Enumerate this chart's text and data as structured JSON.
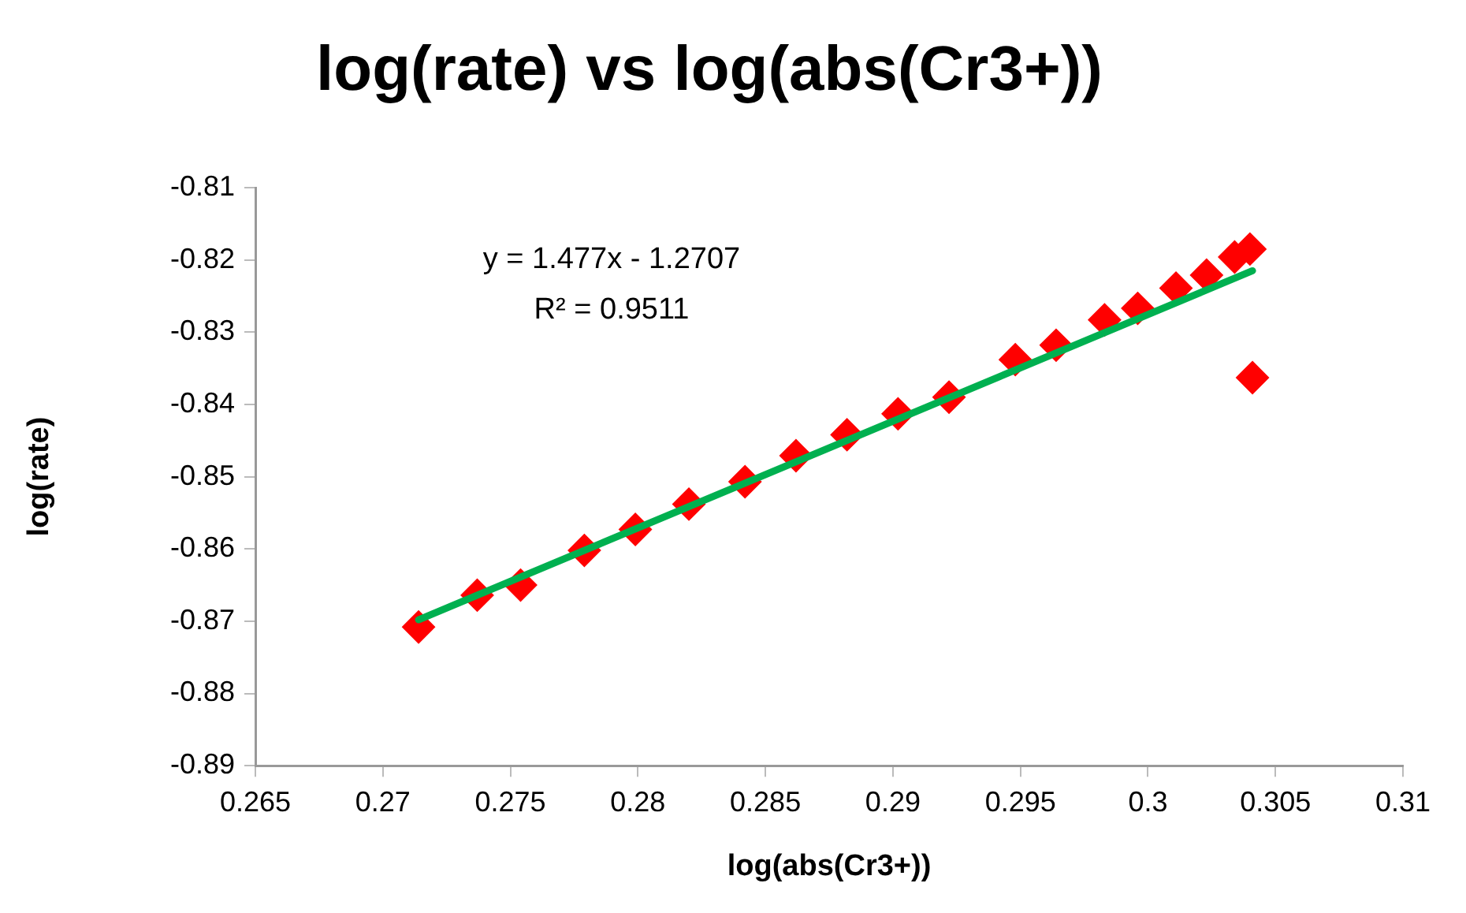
{
  "chart_data": {
    "type": "scatter",
    "title": "log(rate) vs log(abs(Cr3+))",
    "xlabel": "log(abs(Cr3+))",
    "ylabel": "log(rate)",
    "annotations": [
      "y = 1.477x - 1.2707",
      "R² = 0.9511"
    ],
    "x": [
      0.2714,
      0.2737,
      0.2754,
      0.2779,
      0.2799,
      0.282,
      0.2842,
      0.2862,
      0.2882,
      0.2902,
      0.2922,
      0.2948,
      0.2964,
      0.2983,
      0.2996,
      0.3011,
      0.3023,
      0.3034,
      0.304,
      0.3041
    ],
    "series": [
      {
        "color": "#ff0000",
        "marker": "diamond",
        "values": [
          -0.8708,
          -0.8664,
          -0.865,
          -0.8602,
          -0.8573,
          -0.8538,
          -0.8507,
          -0.8471,
          -0.8442,
          -0.8413,
          -0.839,
          -0.8338,
          -0.8318,
          -0.8283,
          -0.8267,
          -0.8239,
          -0.8221,
          -0.8196,
          -0.8185,
          -0.8363
        ]
      },
      {
        "type": "line",
        "color": "#00b050",
        "marker": "none",
        "x": [
          0.2714,
          0.3041
        ],
        "values": [
          -0.8698,
          -0.8215
        ]
      }
    ],
    "xlim": [
      0.265,
      0.31
    ],
    "xticks": [
      0.265,
      0.27,
      0.275,
      0.28,
      0.285,
      0.29,
      0.295,
      0.3,
      0.305,
      0.31
    ],
    "ylim": [
      -0.89,
      -0.81
    ],
    "yticks": [
      -0.89,
      -0.88,
      -0.87,
      -0.86,
      -0.85,
      -0.84,
      -0.83,
      -0.82,
      -0.81
    ],
    "grid": false,
    "legend": false
  }
}
